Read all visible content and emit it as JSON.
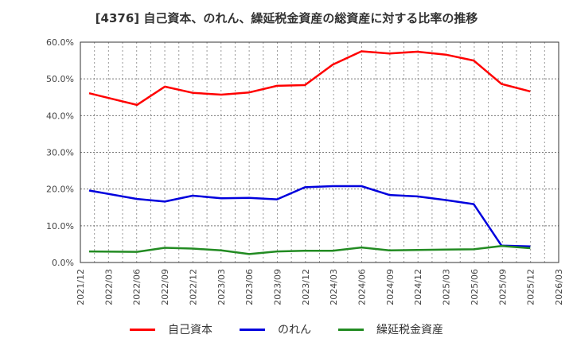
{
  "title": "[4376]  自己資本、のれん、繰延税金資産の総資産に対する比率の推移",
  "colors": {
    "equity": "#ff0000",
    "goodwill": "#0000dd",
    "deferred_tax": "#228b22",
    "grid": "#999999",
    "axis": "#333333"
  },
  "legend": [
    {
      "label": "自己資本",
      "color": "#ff0000"
    },
    {
      "label": "のれん",
      "color": "#0000dd"
    },
    {
      "label": "繰延税金資産",
      "color": "#228b22"
    }
  ],
  "chart_data": {
    "type": "line",
    "title": "[4376]  自己資本、のれん、繰延税金資産の総資産に対する比率の推移",
    "xlabel": "",
    "ylabel": "",
    "ylim": [
      0,
      60
    ],
    "y_ticks": [
      "0.0%",
      "10.0%",
      "20.0%",
      "30.0%",
      "40.0%",
      "50.0%",
      "60.0%"
    ],
    "x_ticks": [
      "2021/12",
      "2022/03",
      "2022/06",
      "2022/09",
      "2022/12",
      "2023/03",
      "2023/06",
      "2023/09",
      "2023/12",
      "2024/03",
      "2024/06",
      "2024/09",
      "2024/12",
      "2025/03",
      "2025/06",
      "2025/09",
      "2025/12",
      "2026/03"
    ],
    "grid": true,
    "legend_position": "bottom",
    "x": [
      "2022/01",
      "2022/06",
      "2022/09",
      "2022/12",
      "2023/03",
      "2023/06",
      "2023/09",
      "2023/12",
      "2024/03",
      "2024/06",
      "2024/09",
      "2024/12",
      "2025/03",
      "2025/06",
      "2025/09",
      "2025/12"
    ],
    "x_index": [
      0.31,
      2.01,
      3.0,
      3.99,
      5.01,
      6.0,
      6.99,
      7.98,
      8.97,
      9.99,
      10.98,
      11.97,
      12.99,
      13.98,
      14.97,
      15.99
    ],
    "series": [
      {
        "name": "自己資本",
        "color": "#ff0000",
        "values": [
          46.1,
          42.9,
          47.9,
          46.2,
          45.7,
          46.3,
          48.1,
          48.3,
          53.9,
          57.5,
          56.9,
          57.4,
          56.6,
          55.0,
          48.6,
          46.6
        ]
      },
      {
        "name": "のれん",
        "color": "#0000dd",
        "values": [
          19.6,
          17.3,
          16.6,
          18.2,
          17.5,
          17.6,
          17.2,
          20.5,
          20.8,
          20.8,
          18.4,
          18.0,
          17.0,
          15.9,
          4.6,
          4.4
        ]
      },
      {
        "name": "繰延税金資産",
        "color": "#228b22",
        "values": [
          3.0,
          2.9,
          4.0,
          3.8,
          3.3,
          2.3,
          3.0,
          3.2,
          3.2,
          4.1,
          3.3,
          3.4,
          3.5,
          3.6,
          4.5,
          3.9
        ]
      }
    ]
  }
}
